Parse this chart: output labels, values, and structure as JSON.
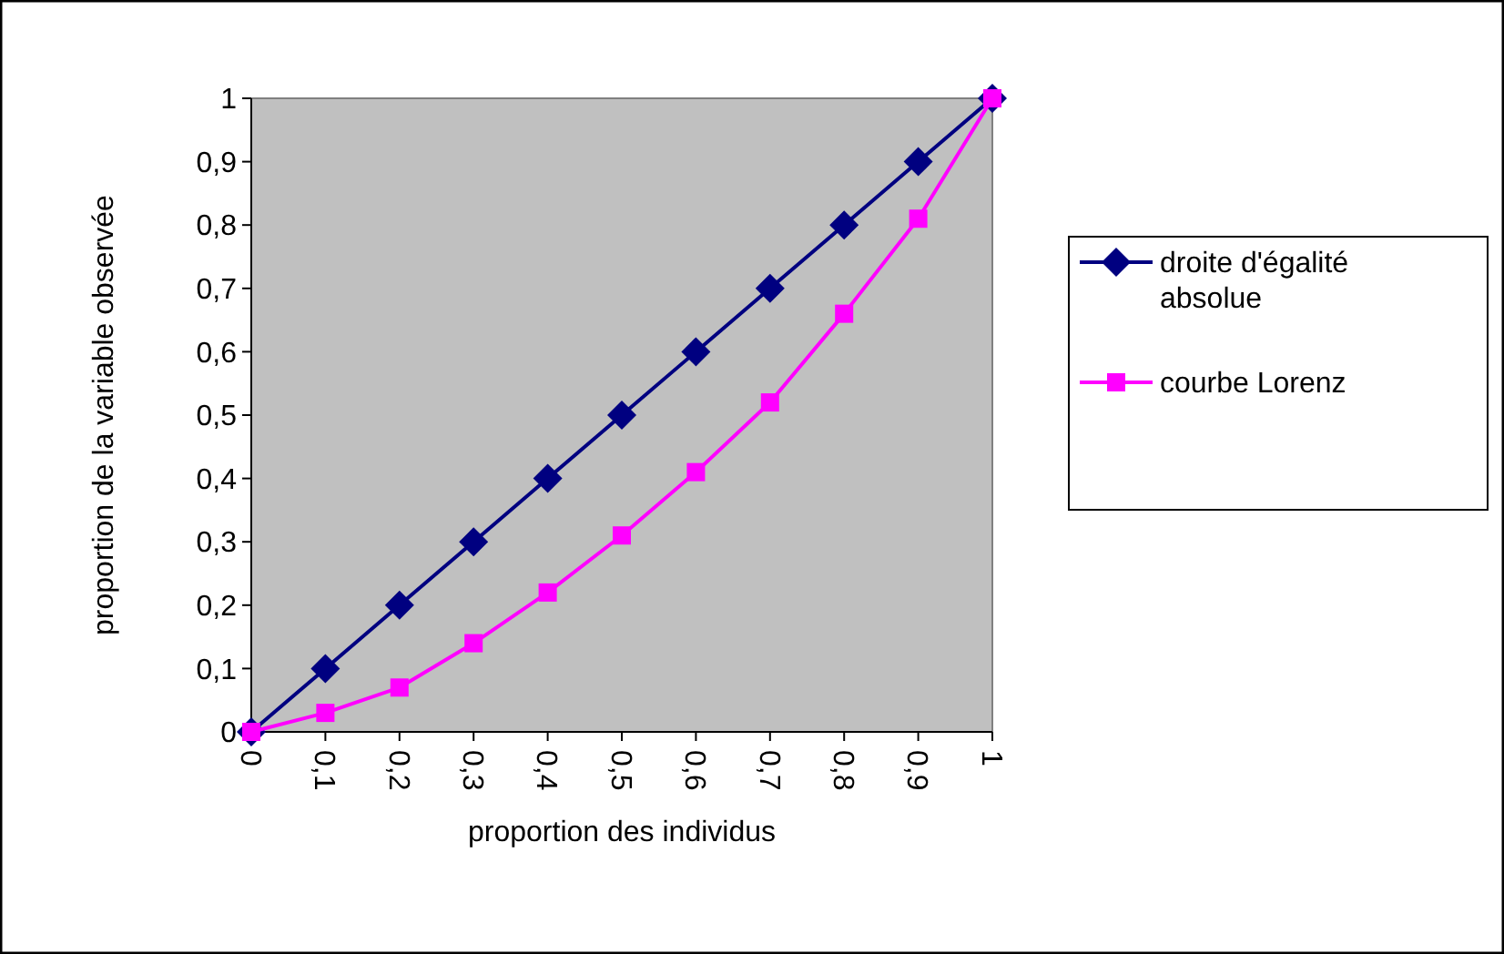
{
  "chart_data": {
    "type": "line",
    "xlabel": "proportion des individus",
    "ylabel": "proportion de la variable observée",
    "categories": [
      "0",
      "0,1",
      "0,2",
      "0,3",
      "0,4",
      "0,5",
      "0,6",
      "0,7",
      "0,8",
      "0,9",
      "1"
    ],
    "series": [
      {
        "name": "droite d'égalité absolue",
        "color": "#000080",
        "marker": "diamond",
        "values": [
          0,
          0.1,
          0.2,
          0.3,
          0.4,
          0.5,
          0.6,
          0.7,
          0.8,
          0.9,
          1
        ]
      },
      {
        "name": "courbe Lorenz",
        "color": "#ff00ff",
        "marker": "square",
        "values": [
          0,
          0.03,
          0.07,
          0.14,
          0.22,
          0.31,
          0.41,
          0.52,
          0.66,
          0.81,
          1
        ]
      }
    ],
    "ylim": [
      0,
      1
    ],
    "yticks": [
      0,
      {
        "value": 0.1,
        "label": "0,1"
      },
      {
        "value": 0.2,
        "label": "0,2"
      },
      {
        "value": 0.3,
        "label": "0,3"
      },
      {
        "value": 0.4,
        "label": "0,4"
      },
      {
        "value": 0.5,
        "label": "0,5"
      },
      {
        "value": 0.6,
        "label": "0,6"
      },
      {
        "value": 0.7,
        "label": "0,7"
      },
      {
        "value": 0.8,
        "label": "0,8"
      },
      {
        "value": 0.9,
        "label": "0,9"
      },
      1
    ],
    "legend": "right",
    "grid": false
  }
}
